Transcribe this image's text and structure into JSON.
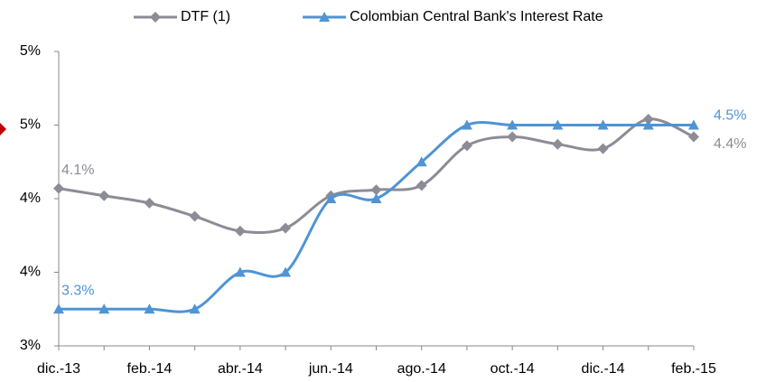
{
  "chart_data": {
    "type": "line",
    "categories": [
      "dic.-13",
      null,
      "feb.-14",
      null,
      "abr.-14",
      null,
      "jun.-14",
      null,
      "ago.-14",
      null,
      "oct.-14",
      null,
      "dic.-14",
      null,
      "feb.-15"
    ],
    "series": [
      {
        "name": "DTF (1)",
        "color": "#8c8c96",
        "marker": "diamond",
        "values": [
          4.07,
          4.02,
          3.97,
          3.88,
          3.78,
          3.8,
          4.02,
          4.06,
          4.09,
          4.36,
          4.42,
          4.37,
          4.34,
          4.54,
          4.42
        ],
        "value_labels": [
          "4.1%",
          null,
          null,
          null,
          null,
          null,
          null,
          null,
          null,
          null,
          null,
          null,
          null,
          null,
          "4.4%"
        ]
      },
      {
        "name": "Colombian Central Bank's Interest Rate",
        "color": "#4f94d4",
        "marker": "triangle",
        "values": [
          3.25,
          3.25,
          3.25,
          3.25,
          3.5,
          3.5,
          4.0,
          4.0,
          4.25,
          4.5,
          4.5,
          4.5,
          4.5,
          4.5,
          4.5
        ],
        "value_labels": [
          "3.3%",
          null,
          null,
          null,
          null,
          null,
          null,
          null,
          null,
          null,
          null,
          null,
          null,
          null,
          "4.5%"
        ]
      }
    ],
    "ylim": [
      3,
      5
    ],
    "yticks": [
      {
        "value": 3,
        "label": "3%"
      },
      {
        "value": 3.5,
        "label": "4%"
      },
      {
        "value": 4,
        "label": "4%"
      },
      {
        "value": 4.5,
        "label": "5%"
      },
      {
        "value": 5,
        "label": "5%"
      }
    ],
    "grid": false,
    "legend": "top"
  }
}
